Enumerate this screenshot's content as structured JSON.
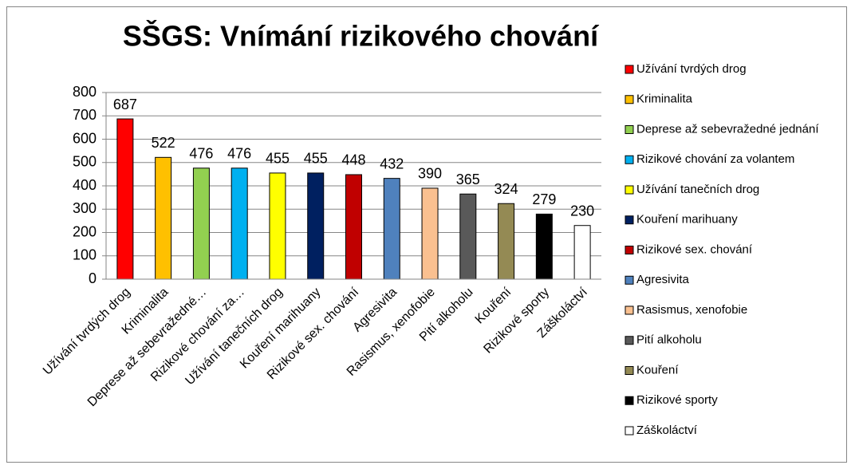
{
  "chart_data": {
    "type": "bar",
    "title": "SŠGS: Vnímání rizikového chování",
    "categories": [
      "Užívání tvrdých drog",
      "Kriminalita",
      "Deprese až sebevražedné…",
      "Rizikové chování za…",
      "Užívání tanečních drog",
      "Kouření marihuany",
      "Rizikové sex. chování",
      "Agresivita",
      "Rasismus, xenofobie",
      "Pití alkoholu",
      "Kouření",
      "Rizikové sporty",
      "Záškoláctví"
    ],
    "legend_labels": [
      "Užívání tvrdých drog",
      "Kriminalita",
      "Deprese až sebevražedné jednání",
      "Rizikové chování za volantem",
      "Užívání tanečních drog",
      "Kouření marihuany",
      "Rizikové sex. chování",
      "Agresivita",
      "Rasismus, xenofobie",
      "Pití alkoholu",
      "Kouření",
      "Rizikové sporty",
      "Záškoláctví"
    ],
    "values": [
      687,
      522,
      476,
      476,
      455,
      455,
      448,
      432,
      390,
      365,
      324,
      279,
      230
    ],
    "colors": [
      "#ff0000",
      "#ffc000",
      "#92d050",
      "#00b0f0",
      "#ffff00",
      "#002060",
      "#c00000",
      "#4f81bd",
      "#fac090",
      "#595959",
      "#948a54",
      "#000000",
      "#ffffff"
    ],
    "ylim": [
      0,
      800
    ],
    "yticks": [
      0,
      100,
      200,
      300,
      400,
      500,
      600,
      700,
      800
    ],
    "grid": true,
    "legend": "right"
  }
}
